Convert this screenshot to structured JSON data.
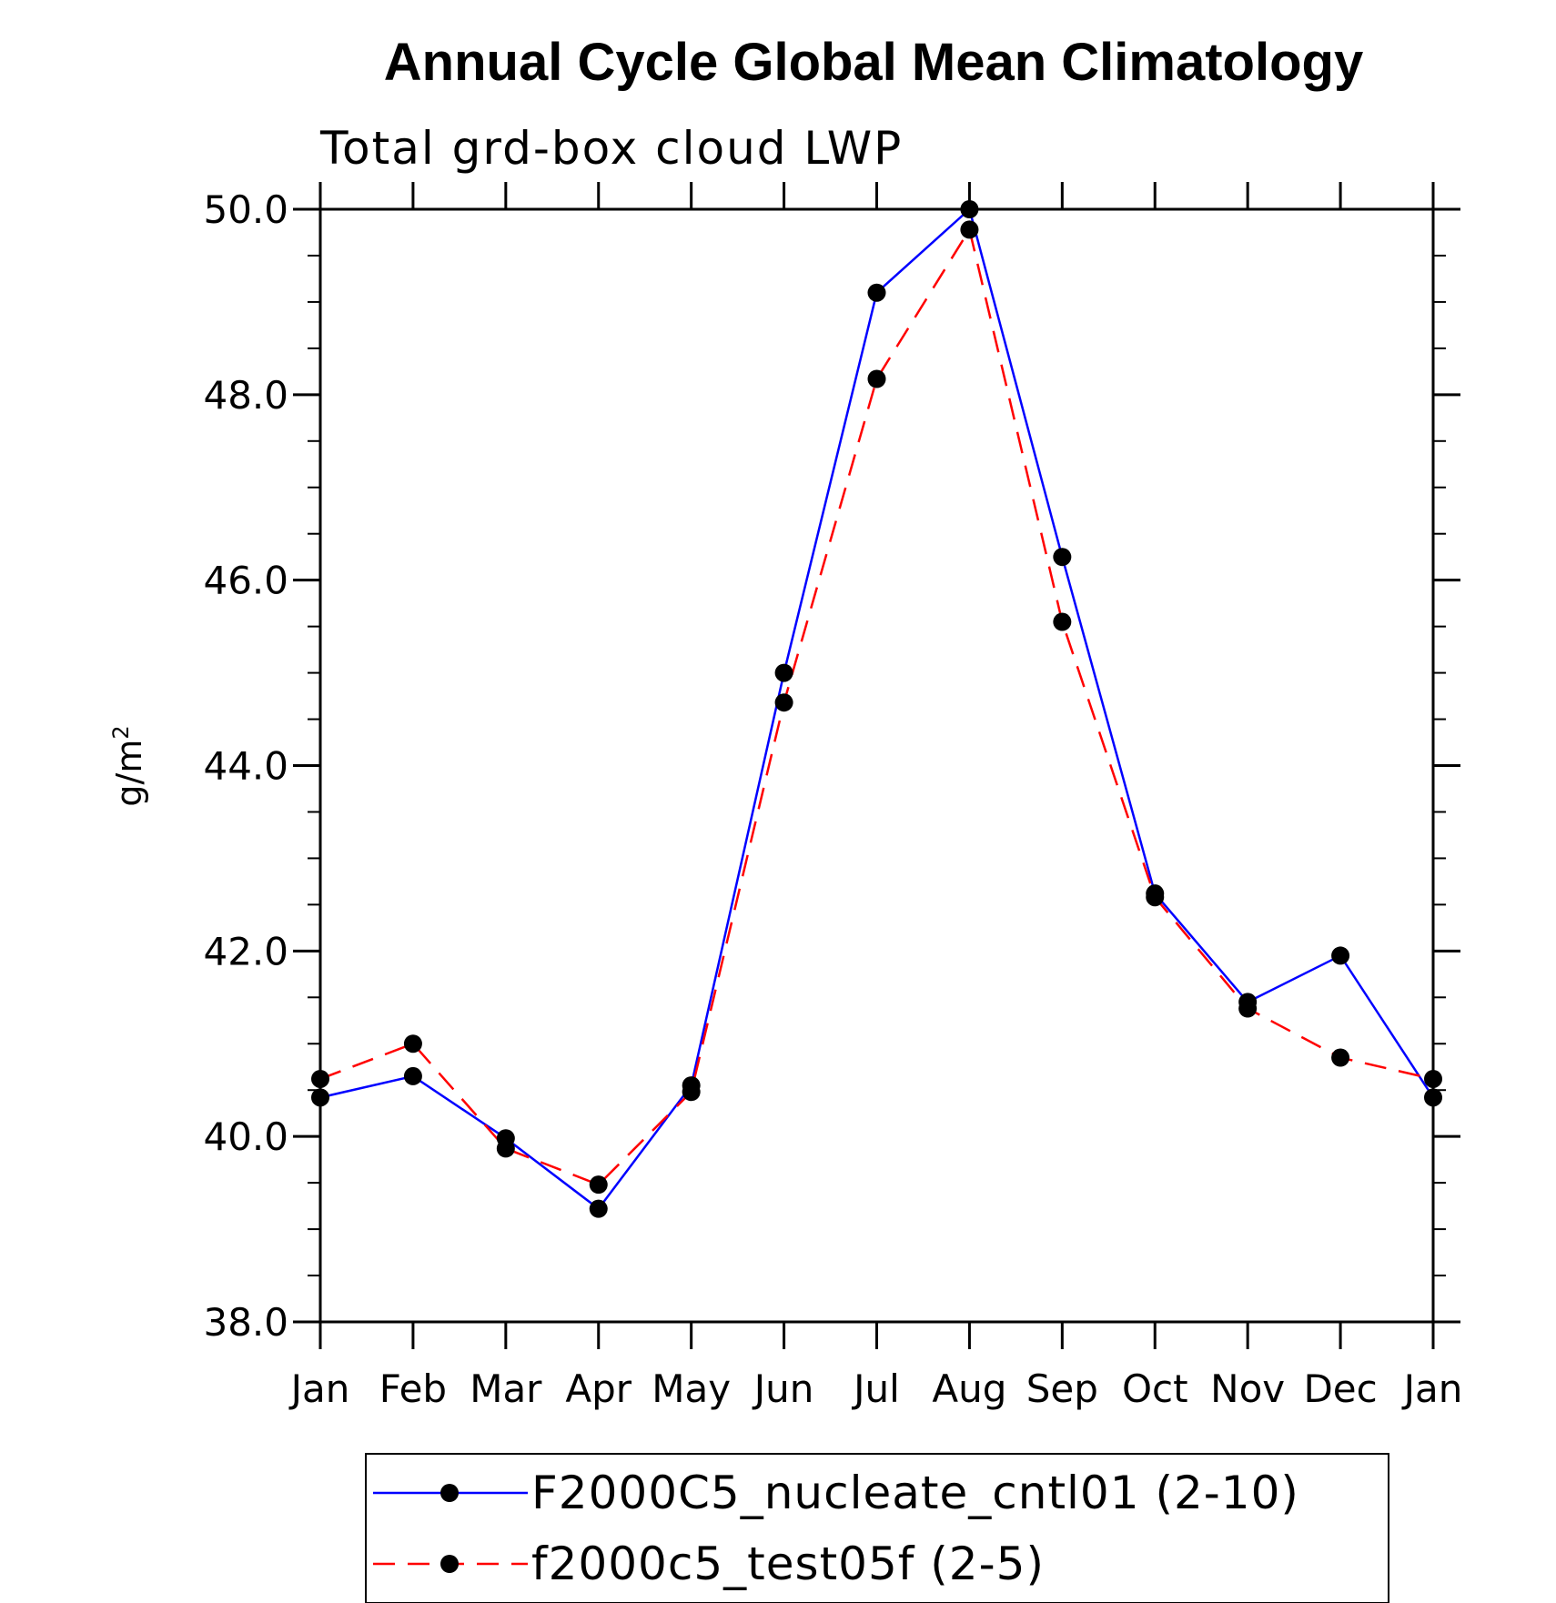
{
  "chart_data": {
    "type": "line",
    "title": "Annual Cycle Global Mean Climatology",
    "subtitle": "Total grd-box cloud LWP",
    "ylabel": "g/m",
    "ylabel_superscript": "2",
    "xlabel": "",
    "categories": [
      "Jan",
      "Feb",
      "Mar",
      "Apr",
      "May",
      "Jun",
      "Jul",
      "Aug",
      "Sep",
      "Oct",
      "Nov",
      "Dec",
      "Jan"
    ],
    "ylim": [
      38.0,
      50.0
    ],
    "yticks": [
      "38.0",
      "40.0",
      "42.0",
      "44.0",
      "46.0",
      "48.0",
      "50.0"
    ],
    "grid": false,
    "legend_position": "bottom",
    "series": [
      {
        "name": "F2000C5_nucleate_cntl01 (2-10)",
        "color": "#0000ff",
        "style": "solid",
        "marker": "filled-circle",
        "values": [
          40.42,
          40.65,
          39.98,
          39.22,
          40.55,
          45.0,
          49.1,
          50.0,
          46.25,
          42.62,
          41.45,
          41.95,
          40.42
        ]
      },
      {
        "name": "f2000c5_test05f (2-5)",
        "color": "#ff0000",
        "style": "dashed",
        "marker": "filled-circle",
        "values": [
          40.62,
          41.0,
          39.87,
          39.48,
          40.48,
          44.68,
          48.17,
          49.78,
          45.55,
          42.58,
          41.38,
          40.85,
          40.62
        ]
      }
    ]
  }
}
